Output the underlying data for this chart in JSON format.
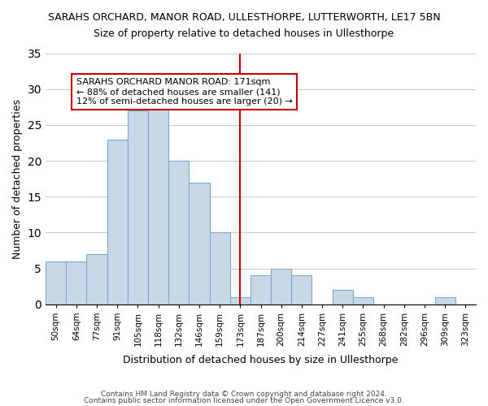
{
  "title_line1": "SARAHS ORCHARD, MANOR ROAD, ULLESTHORPE, LUTTERWORTH, LE17 5BN",
  "title_line2": "Size of property relative to detached houses in Ullesthorpe",
  "xlabel": "Distribution of detached houses by size in Ullesthorpe",
  "ylabel": "Number of detached properties",
  "footer_line1": "Contains HM Land Registry data © Crown copyright and database right 2024.",
  "footer_line2": "Contains public sector information licensed under the Open Government Licence v3.0.",
  "bin_labels": [
    "50sqm",
    "64sqm",
    "77sqm",
    "91sqm",
    "105sqm",
    "118sqm",
    "132sqm",
    "146sqm",
    "159sqm",
    "173sqm",
    "187sqm",
    "200sqm",
    "214sqm",
    "227sqm",
    "241sqm",
    "255sqm",
    "268sqm",
    "282sqm",
    "296sqm",
    "309sqm",
    "323sqm"
  ],
  "bar_heights": [
    6,
    6,
    7,
    23,
    27,
    28,
    20,
    17,
    10,
    1,
    4,
    5,
    4,
    0,
    2,
    1,
    0,
    0,
    0,
    1,
    0
  ],
  "bar_color": "#c8d8e8",
  "bar_edge_color": "#7aaac8",
  "vline_x_index": 9.5,
  "vline_color": "#cc0000",
  "annotation_title": "SARAHS ORCHARD MANOR ROAD: 171sqm",
  "annotation_line2": "← 88% of detached houses are smaller (141)",
  "annotation_line3": "12% of semi-detached houses are larger (20) →",
  "annotation_box_edge": "#cc0000",
  "ylim": [
    0,
    35
  ],
  "yticks": [
    0,
    5,
    10,
    15,
    20,
    25,
    30,
    35
  ],
  "background_color": "#ffffff",
  "grid_color": "#cccccc"
}
